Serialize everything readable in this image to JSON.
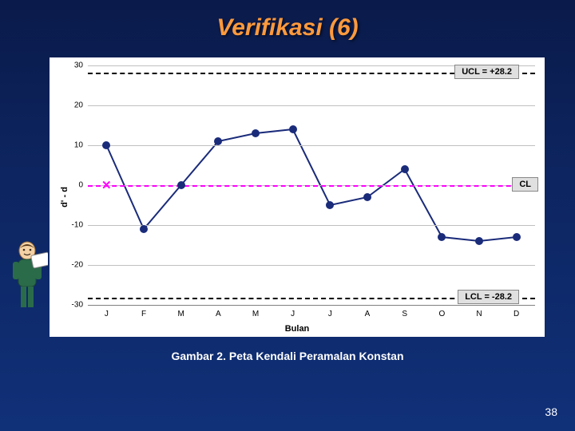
{
  "title": "Verifikasi (6)",
  "caption": "Gambar 2. Peta Kendali Peramalan Konstan",
  "page_number": "38",
  "chart": {
    "type": "line",
    "y_label": "d' - d",
    "x_label": "Bulan",
    "x_categories": [
      "J",
      "F",
      "M",
      "A",
      "M",
      "J",
      "J",
      "A",
      "S",
      "O",
      "N",
      "D"
    ],
    "values": [
      10,
      -11,
      0,
      11,
      13,
      14,
      -5,
      -3,
      4,
      -13,
      -14,
      -13
    ],
    "ylim": [
      -30,
      30
    ],
    "ytick_step": 10,
    "point_color": "#1a2b7a",
    "line_color": "#1a2b7a",
    "background_color": "#ffffff",
    "grid_color": "#c0c0c0",
    "ucl": {
      "value": 28.2,
      "label": "UCL = +28.2",
      "color": "#000000"
    },
    "lcl": {
      "value": -28.2,
      "label": "LCL = -28.2",
      "color": "#000000"
    },
    "cl": {
      "value": 0,
      "label": "CL",
      "color": "#ff00ff"
    },
    "x_mark": {
      "month": "J",
      "value": 0,
      "color": "#ff00ff"
    },
    "label_fontsize": 10,
    "title_fontsize": 30
  },
  "colors": {
    "slide_bg_top": "#0a1a4a",
    "slide_bg_bottom": "#103078",
    "title_color": "#ff9a3c",
    "caption_color": "#ffffff"
  }
}
